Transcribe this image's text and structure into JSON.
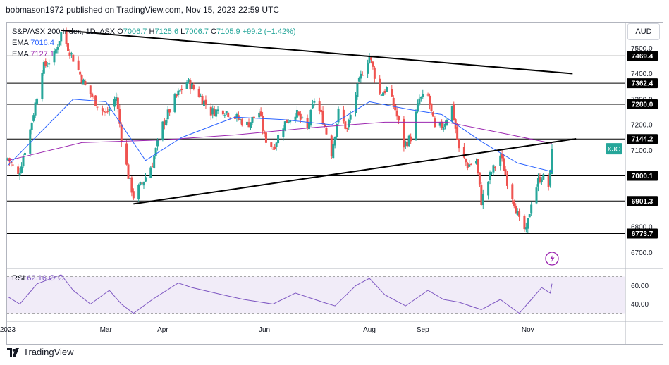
{
  "header": {
    "text": "bobmason1972 published on TradingView.com, Nov 15, 2023 22:59 UTC"
  },
  "legend": {
    "symbol": "S&P/ASX 200 Index, 1D, ASX",
    "open_label": "O",
    "open": "7006.7",
    "high_label": "H",
    "high": "7125.6",
    "low_label": "L",
    "low": "7006.7",
    "close_label": "C",
    "close": "7105.9",
    "change": "+99.2 (+1.42%)",
    "ema1_label": "EMA",
    "ema1_value": "7016.4",
    "ema2_label": "EMA",
    "ema2_value": "7127.1"
  },
  "currency": "AUD",
  "rsi_legend": {
    "label": "RSI",
    "value": "62.16",
    "extra1": "∅",
    "extra2": "∅"
  },
  "footer": {
    "brand": "TradingView"
  },
  "colors": {
    "up": "#26a69a",
    "down": "#ef5350",
    "ema_fast": "#2962ff",
    "ema_slow": "#9c27b0",
    "rsi_line": "#7e57c2",
    "rsi_band": "#ede7f6",
    "hline": "#000000",
    "price_label_bg": "#000000",
    "current_label_bg": "#26a69a"
  },
  "chart_data": [
    {
      "type": "candlestick",
      "title": "S&P/ASX 200 Index, 1D, ASX",
      "x_ticks": [
        "2023",
        "Mar",
        "Apr",
        "Jun",
        "Aug",
        "Sep",
        "Nov"
      ],
      "y_ticks": [
        6700.0,
        6800.0,
        6900.0,
        7000.0,
        7100.0,
        7200.0,
        7300.0,
        7400.0,
        7500.0
      ],
      "y_tick_labels": [
        "6700.0",
        "6800.0",
        "6900.0",
        "7000.0",
        "7100.0",
        "7200.0",
        "7300.0",
        "7400.0",
        "7500.0"
      ],
      "ylim": [
        6640,
        7600
      ],
      "horizontal_levels": [
        {
          "value": 7469.4,
          "label": "7469.4"
        },
        {
          "value": 7362.4,
          "label": "7362.4"
        },
        {
          "value": 7280.0,
          "label": "7280.0"
        },
        {
          "value": 7144.2,
          "label": "7144.2"
        },
        {
          "value": 7000.1,
          "label": "7000.1"
        },
        {
          "value": 6901.3,
          "label": "6901.3"
        },
        {
          "value": 6773.7,
          "label": "6773.7"
        }
      ],
      "current_price": {
        "value": 7105.9,
        "label": "XJO"
      },
      "trendlines": [
        {
          "from": {
            "date": "2023-02-03",
            "value": 7570
          },
          "to": {
            "date": "2023-11-27",
            "value": 7400
          }
        },
        {
          "from": {
            "date": "2023-03-17",
            "value": 6890
          },
          "to": {
            "date": "2023-11-29",
            "value": 7145
          }
        }
      ],
      "anchors": [
        {
          "date": "2023-01-03",
          "close": 7070
        },
        {
          "date": "2023-01-09",
          "close": 7000
        },
        {
          "date": "2023-01-16",
          "close": 7180
        },
        {
          "date": "2023-01-23",
          "close": 7420
        },
        {
          "date": "2023-01-30",
          "close": 7470
        },
        {
          "date": "2023-02-03",
          "close": 7560
        },
        {
          "date": "2023-02-10",
          "close": 7460
        },
        {
          "date": "2023-02-17",
          "close": 7350
        },
        {
          "date": "2023-02-24",
          "close": 7280
        },
        {
          "date": "2023-03-01",
          "close": 7240
        },
        {
          "date": "2023-03-07",
          "close": 7310
        },
        {
          "date": "2023-03-10",
          "close": 7150
        },
        {
          "date": "2023-03-14",
          "close": 7000
        },
        {
          "date": "2023-03-17",
          "close": 6920
        },
        {
          "date": "2023-03-22",
          "close": 6970
        },
        {
          "date": "2023-03-28",
          "close": 7050
        },
        {
          "date": "2023-04-03",
          "close": 7200
        },
        {
          "date": "2023-04-10",
          "close": 7300
        },
        {
          "date": "2023-04-17",
          "close": 7370
        },
        {
          "date": "2023-04-24",
          "close": 7320
        },
        {
          "date": "2023-05-01",
          "close": 7250
        },
        {
          "date": "2023-05-08",
          "close": 7260
        },
        {
          "date": "2023-05-15",
          "close": 7230
        },
        {
          "date": "2023-05-22",
          "close": 7200
        },
        {
          "date": "2023-05-29",
          "close": 7250
        },
        {
          "date": "2023-06-01",
          "close": 7150
        },
        {
          "date": "2023-06-06",
          "close": 7110
        },
        {
          "date": "2023-06-12",
          "close": 7200
        },
        {
          "date": "2023-06-19",
          "close": 7250
        },
        {
          "date": "2023-06-26",
          "close": 7180
        },
        {
          "date": "2023-06-30",
          "close": 7300
        },
        {
          "date": "2023-07-05",
          "close": 7220
        },
        {
          "date": "2023-07-10",
          "close": 7090
        },
        {
          "date": "2023-07-14",
          "close": 7250
        },
        {
          "date": "2023-07-19",
          "close": 7180
        },
        {
          "date": "2023-07-24",
          "close": 7320
        },
        {
          "date": "2023-07-28",
          "close": 7410
        },
        {
          "date": "2023-08-01",
          "close": 7470
        },
        {
          "date": "2023-08-07",
          "close": 7320
        },
        {
          "date": "2023-08-11",
          "close": 7340
        },
        {
          "date": "2023-08-16",
          "close": 7260
        },
        {
          "date": "2023-08-21",
          "close": 7120
        },
        {
          "date": "2023-08-25",
          "close": 7150
        },
        {
          "date": "2023-08-30",
          "close": 7300
        },
        {
          "date": "2023-09-04",
          "close": 7310
        },
        {
          "date": "2023-09-08",
          "close": 7180
        },
        {
          "date": "2023-09-13",
          "close": 7200
        },
        {
          "date": "2023-09-18",
          "close": 7270
        },
        {
          "date": "2023-09-22",
          "close": 7100
        },
        {
          "date": "2023-09-27",
          "close": 7040
        },
        {
          "date": "2023-10-02",
          "close": 7060
        },
        {
          "date": "2023-10-05",
          "close": 6900
        },
        {
          "date": "2023-10-10",
          "close": 7000
        },
        {
          "date": "2023-10-16",
          "close": 7080
        },
        {
          "date": "2023-10-20",
          "close": 6980
        },
        {
          "date": "2023-10-24",
          "close": 6900
        },
        {
          "date": "2023-10-27",
          "close": 6820
        },
        {
          "date": "2023-10-31",
          "close": 6780
        },
        {
          "date": "2023-11-03",
          "close": 6900
        },
        {
          "date": "2023-11-07",
          "close": 6980
        },
        {
          "date": "2023-11-09",
          "close": 7000
        },
        {
          "date": "2023-11-13",
          "close": 6960
        },
        {
          "date": "2023-11-14",
          "close": 7006.7
        },
        {
          "date": "2023-11-15",
          "close": 7105.9
        }
      ],
      "ema_fast_points": [
        {
          "date": "2023-01-03",
          "value": 7040
        },
        {
          "date": "2023-02-10",
          "value": 7300
        },
        {
          "date": "2023-03-01",
          "value": 7290
        },
        {
          "date": "2023-03-24",
          "value": 7060
        },
        {
          "date": "2023-04-14",
          "value": 7150
        },
        {
          "date": "2023-05-15",
          "value": 7230
        },
        {
          "date": "2023-06-12",
          "value": 7220
        },
        {
          "date": "2023-07-10",
          "value": 7200
        },
        {
          "date": "2023-08-01",
          "value": 7290
        },
        {
          "date": "2023-08-24",
          "value": 7260
        },
        {
          "date": "2023-09-12",
          "value": 7240
        },
        {
          "date": "2023-10-06",
          "value": 7130
        },
        {
          "date": "2023-10-26",
          "value": 7050
        },
        {
          "date": "2023-11-15",
          "value": 7016.4
        }
      ],
      "ema_slow_points": [
        {
          "date": "2023-01-03",
          "value": 7060
        },
        {
          "date": "2023-02-15",
          "value": 7130
        },
        {
          "date": "2023-04-01",
          "value": 7140
        },
        {
          "date": "2023-05-15",
          "value": 7160
        },
        {
          "date": "2023-07-01",
          "value": 7190
        },
        {
          "date": "2023-08-10",
          "value": 7210
        },
        {
          "date": "2023-09-15",
          "value": 7210
        },
        {
          "date": "2023-10-15",
          "value": 7170
        },
        {
          "date": "2023-11-15",
          "value": 7127.1
        }
      ]
    },
    {
      "type": "line",
      "title": "RSI",
      "y_ticks": [
        40.0,
        60.0
      ],
      "y_tick_labels": [
        "40.00",
        "60.00"
      ],
      "ylim": [
        22,
        78
      ],
      "band": [
        30,
        70
      ],
      "mid": 50,
      "series": [
        {
          "name": "RSI",
          "points": [
            {
              "date": "2023-01-03",
              "value": 48
            },
            {
              "date": "2023-01-10",
              "value": 40
            },
            {
              "date": "2023-01-20",
              "value": 62
            },
            {
              "date": "2023-02-03",
              "value": 72
            },
            {
              "date": "2023-02-10",
              "value": 55
            },
            {
              "date": "2023-02-20",
              "value": 40
            },
            {
              "date": "2023-03-03",
              "value": 55
            },
            {
              "date": "2023-03-10",
              "value": 40
            },
            {
              "date": "2023-03-17",
              "value": 30
            },
            {
              "date": "2023-03-28",
              "value": 45
            },
            {
              "date": "2023-04-12",
              "value": 63
            },
            {
              "date": "2023-04-20",
              "value": 58
            },
            {
              "date": "2023-05-08",
              "value": 50
            },
            {
              "date": "2023-05-20",
              "value": 45
            },
            {
              "date": "2023-06-06",
              "value": 40
            },
            {
              "date": "2023-06-19",
              "value": 52
            },
            {
              "date": "2023-07-05",
              "value": 42
            },
            {
              "date": "2023-07-12",
              "value": 38
            },
            {
              "date": "2023-07-24",
              "value": 60
            },
            {
              "date": "2023-08-01",
              "value": 68
            },
            {
              "date": "2023-08-10",
              "value": 50
            },
            {
              "date": "2023-08-22",
              "value": 38
            },
            {
              "date": "2023-09-04",
              "value": 55
            },
            {
              "date": "2023-09-13",
              "value": 45
            },
            {
              "date": "2023-09-22",
              "value": 42
            },
            {
              "date": "2023-10-05",
              "value": 34
            },
            {
              "date": "2023-10-16",
              "value": 45
            },
            {
              "date": "2023-10-27",
              "value": 30
            },
            {
              "date": "2023-11-03",
              "value": 45
            },
            {
              "date": "2023-11-09",
              "value": 58
            },
            {
              "date": "2023-11-14",
              "value": 52
            },
            {
              "date": "2023-11-15",
              "value": 62.16
            }
          ]
        }
      ]
    }
  ]
}
